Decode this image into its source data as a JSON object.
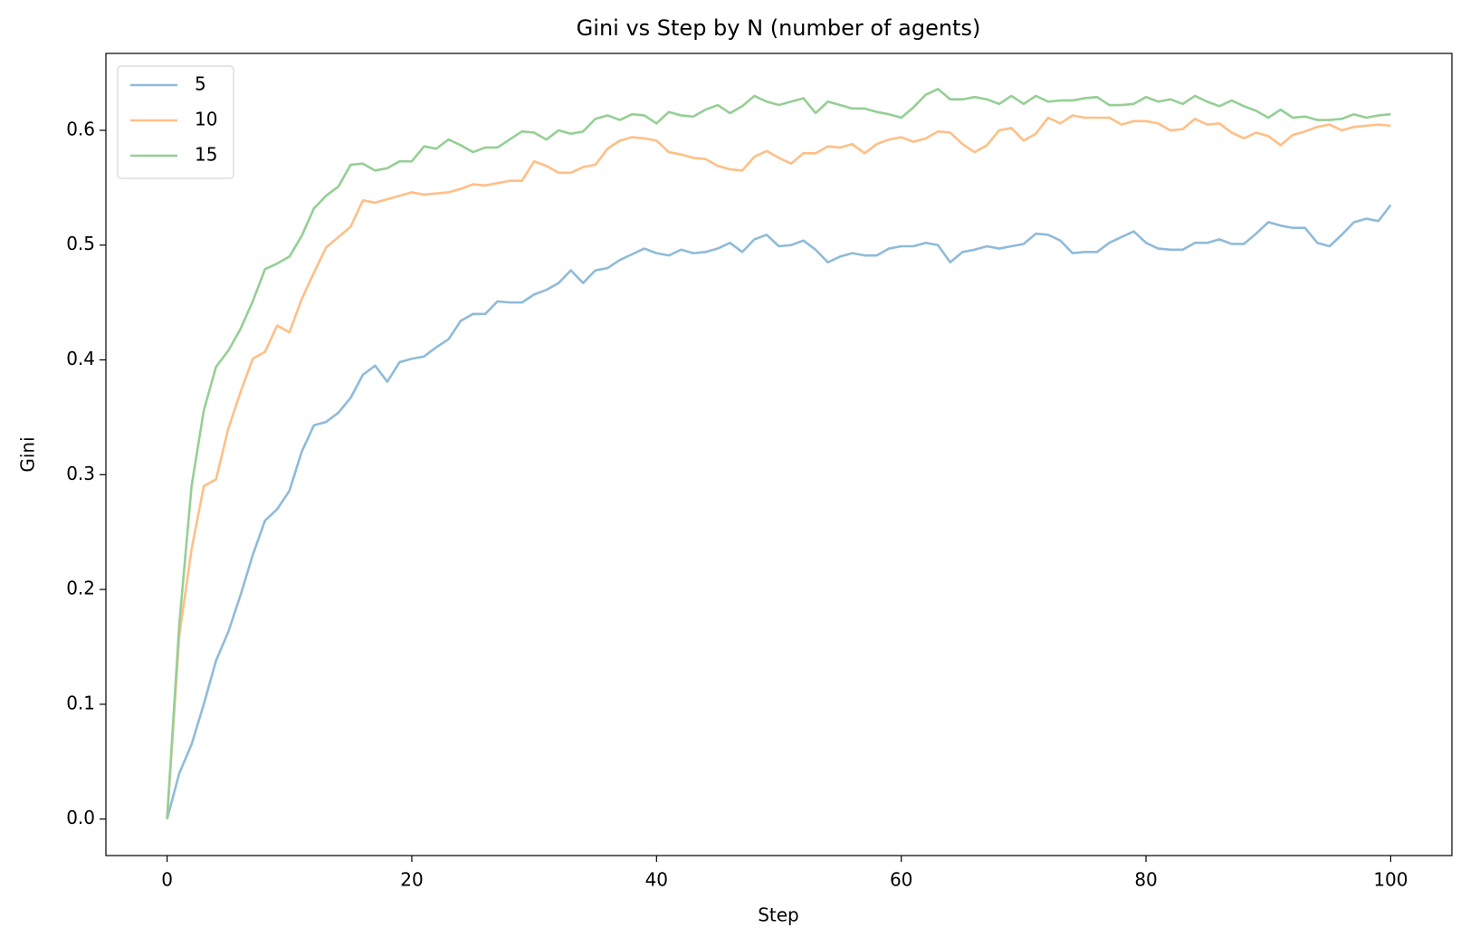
{
  "chart_data": {
    "type": "line",
    "title": "Gini vs Step by N (number of agents)",
    "x_label": "Step",
    "y_label": "Gini",
    "x": [
      0,
      1,
      2,
      3,
      4,
      5,
      6,
      7,
      8,
      9,
      10,
      11,
      12,
      13,
      14,
      15,
      16,
      17,
      18,
      19,
      20,
      21,
      22,
      23,
      24,
      25,
      26,
      27,
      28,
      29,
      30,
      31,
      32,
      33,
      34,
      35,
      36,
      37,
      38,
      39,
      40,
      41,
      42,
      43,
      44,
      45,
      46,
      47,
      48,
      49,
      50,
      51,
      52,
      53,
      54,
      55,
      56,
      57,
      58,
      59,
      60,
      61,
      62,
      63,
      64,
      65,
      66,
      67,
      68,
      69,
      70,
      71,
      72,
      73,
      74,
      75,
      76,
      77,
      78,
      79,
      80,
      81,
      82,
      83,
      84,
      85,
      86,
      87,
      88,
      89,
      90,
      91,
      92,
      93,
      94,
      95,
      96,
      97,
      98,
      99,
      100
    ],
    "series": [
      {
        "name": "5",
        "color": "#8fbbd9",
        "values": [
          0,
          0.04,
          0.065,
          0.1,
          0.138,
          0.163,
          0.195,
          0.23,
          0.26,
          0.27,
          0.286,
          0.32,
          0.343,
          0.346,
          0.354,
          0.367,
          0.387,
          0.395,
          0.381,
          0.398,
          0.401,
          0.403,
          0.411,
          0.418,
          0.434,
          0.44,
          0.44,
          0.451,
          0.45,
          0.45,
          0.457,
          0.461,
          0.467,
          0.478,
          0.467,
          0.478,
          0.48,
          0.487,
          0.492,
          0.497,
          0.493,
          0.491,
          0.496,
          0.493,
          0.494,
          0.497,
          0.502,
          0.494,
          0.505,
          0.509,
          0.499,
          0.5,
          0.504,
          0.496,
          0.485,
          0.49,
          0.493,
          0.491,
          0.491,
          0.497,
          0.499,
          0.499,
          0.502,
          0.5,
          0.485,
          0.494,
          0.496,
          0.499,
          0.497,
          0.499,
          0.501,
          0.51,
          0.509,
          0.504,
          0.493,
          0.494,
          0.494,
          0.502,
          0.507,
          0.512,
          0.502,
          0.497,
          0.496,
          0.496,
          0.502,
          0.502,
          0.505,
          0.501,
          0.501,
          0.51,
          0.52,
          0.517,
          0.515,
          0.515,
          0.502,
          0.499,
          0.509,
          0.52,
          0.523,
          0.521,
          0.535
        ]
      },
      {
        "name": "10",
        "color": "#ffbf86",
        "values": [
          0,
          0.16,
          0.235,
          0.29,
          0.296,
          0.34,
          0.372,
          0.401,
          0.407,
          0.43,
          0.424,
          0.453,
          0.476,
          0.498,
          0.507,
          0.516,
          0.539,
          0.537,
          0.54,
          0.543,
          0.546,
          0.544,
          0.545,
          0.546,
          0.549,
          0.553,
          0.552,
          0.554,
          0.556,
          0.556,
          0.573,
          0.569,
          0.563,
          0.563,
          0.568,
          0.57,
          0.584,
          0.591,
          0.594,
          0.593,
          0.591,
          0.581,
          0.579,
          0.576,
          0.575,
          0.569,
          0.566,
          0.565,
          0.577,
          0.582,
          0.576,
          0.571,
          0.58,
          0.58,
          0.586,
          0.585,
          0.588,
          0.58,
          0.588,
          0.592,
          0.594,
          0.59,
          0.593,
          0.599,
          0.598,
          0.588,
          0.581,
          0.587,
          0.6,
          0.602,
          0.591,
          0.597,
          0.611,
          0.606,
          0.613,
          0.611,
          0.611,
          0.611,
          0.605,
          0.608,
          0.608,
          0.606,
          0.6,
          0.601,
          0.61,
          0.605,
          0.606,
          0.598,
          0.593,
          0.598,
          0.595,
          0.587,
          0.596,
          0.599,
          0.603,
          0.605,
          0.6,
          0.603,
          0.604,
          0.605,
          0.604
        ]
      },
      {
        "name": "15",
        "color": "#95cf95",
        "values": [
          0,
          0.17,
          0.29,
          0.356,
          0.394,
          0.408,
          0.427,
          0.451,
          0.479,
          0.484,
          0.49,
          0.508,
          0.532,
          0.543,
          0.551,
          0.57,
          0.571,
          0.565,
          0.567,
          0.573,
          0.573,
          0.586,
          0.584,
          0.592,
          0.587,
          0.581,
          0.585,
          0.585,
          0.592,
          0.599,
          0.598,
          0.592,
          0.6,
          0.597,
          0.599,
          0.61,
          0.613,
          0.609,
          0.614,
          0.613,
          0.606,
          0.616,
          0.613,
          0.612,
          0.618,
          0.622,
          0.615,
          0.621,
          0.63,
          0.625,
          0.622,
          0.625,
          0.628,
          0.615,
          0.625,
          0.622,
          0.619,
          0.619,
          0.616,
          0.614,
          0.611,
          0.62,
          0.631,
          0.636,
          0.627,
          0.627,
          0.629,
          0.627,
          0.623,
          0.63,
          0.623,
          0.63,
          0.625,
          0.626,
          0.626,
          0.628,
          0.629,
          0.622,
          0.622,
          0.623,
          0.629,
          0.625,
          0.627,
          0.623,
          0.63,
          0.625,
          0.621,
          0.626,
          0.621,
          0.617,
          0.611,
          0.618,
          0.611,
          0.612,
          0.609,
          0.609,
          0.61,
          0.614,
          0.611,
          0.613,
          0.614
        ]
      }
    ],
    "xlim": [
      -5,
      105
    ],
    "xticks": [
      0,
      20,
      40,
      60,
      80,
      100
    ],
    "ylim": [
      -0.0318,
      0.667
    ],
    "yticks": [
      {
        "value": 0,
        "label": "0.0"
      },
      0.1,
      0.2,
      0.3,
      0.4,
      0.5,
      0.6
    ],
    "legend": "upper left"
  }
}
